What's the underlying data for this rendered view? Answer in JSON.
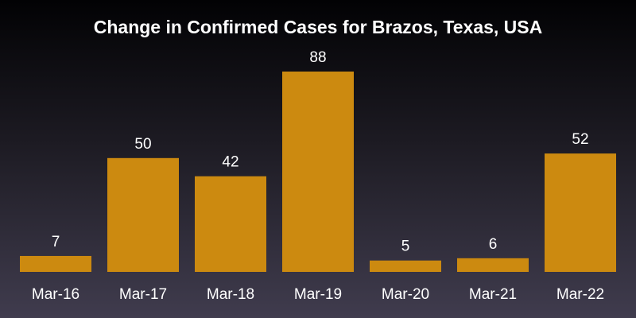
{
  "chart_data": {
    "type": "bar",
    "title": "Change in Confirmed Cases for Brazos, Texas, USA",
    "categories": [
      "Mar-16",
      "Mar-17",
      "Mar-18",
      "Mar-19",
      "Mar-20",
      "Mar-21",
      "Mar-22"
    ],
    "values": [
      7,
      50,
      42,
      88,
      5,
      6,
      52
    ],
    "xlabel": "",
    "ylabel": "",
    "ylim": [
      0,
      88
    ],
    "grid": false,
    "data_labels": true,
    "bar_color": "#cc8a10"
  }
}
